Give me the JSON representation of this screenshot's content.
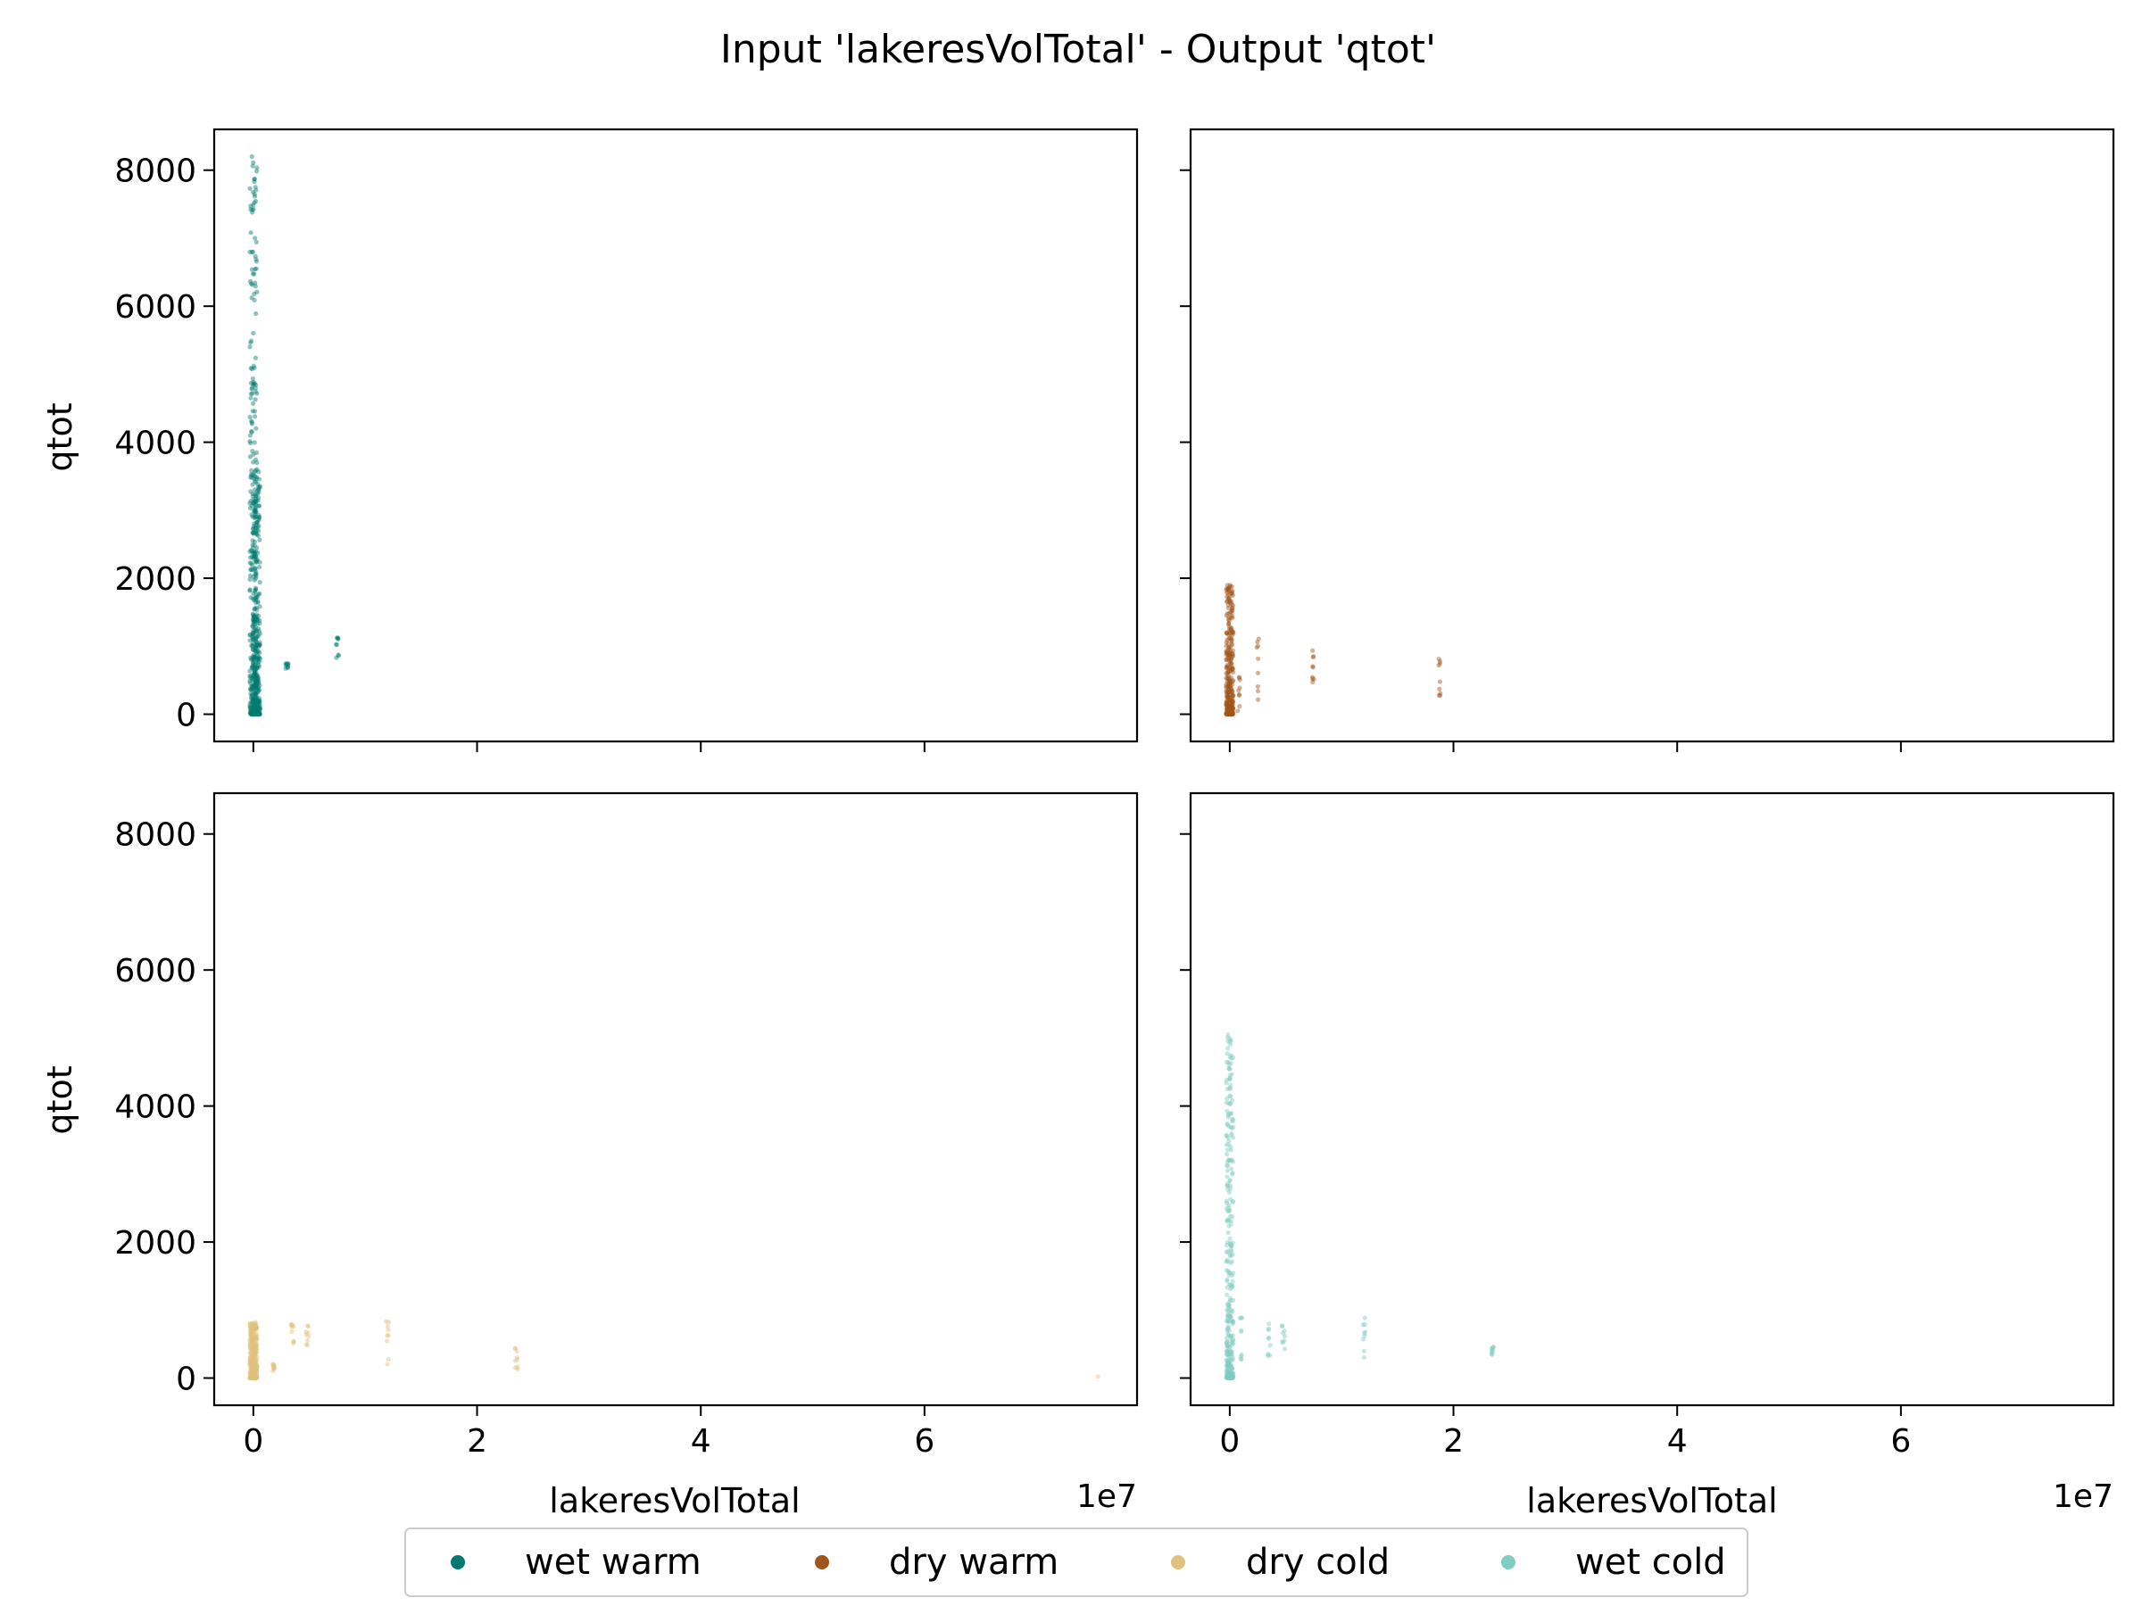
{
  "figure": {
    "title": "Input 'lakeresVolTotal' - Output 'qtot'"
  },
  "axis_text": {
    "xlabel": "lakeresVolTotal",
    "ylabel": "qtot",
    "x_offset_label": "1e7",
    "x_ticks": [
      "0",
      "2",
      "4",
      "6"
    ],
    "y_ticks": [
      "0",
      "2000",
      "4000",
      "6000",
      "8000"
    ]
  },
  "legend": {
    "items": [
      {
        "label": "wet warm",
        "color": "#01796F"
      },
      {
        "label": "dry warm",
        "color": "#A0561A"
      },
      {
        "label": "dry cold",
        "color": "#DFC27D"
      },
      {
        "label": "wet cold",
        "color": "#80CDC1"
      }
    ]
  },
  "chart_data": {
    "type": "scatter",
    "title": "Input 'lakeresVolTotal' - Output 'qtot'",
    "xlabel": "lakeresVolTotal",
    "ylabel": "qtot",
    "x_scale_note": "1e7",
    "xlim": [
      -0.35,
      7.9
    ],
    "ylim": [
      -400,
      8600
    ],
    "x_ticks": [
      0,
      2,
      4,
      6
    ],
    "y_ticks": [
      0,
      2000,
      4000,
      6000,
      8000
    ],
    "layout": "2x2 grid, shared axes",
    "grid": false,
    "legend_position": "bottom-center",
    "panels": [
      {
        "series": "wet warm",
        "color": "#01796F",
        "clusters": [
          {
            "x": 0.0,
            "y_min": 0,
            "y_max": 8200,
            "density": "dense"
          },
          {
            "x": 0.03,
            "y_min": 0,
            "y_max": 3600,
            "density": "dense"
          },
          {
            "x": 0.3,
            "y_min": 660,
            "y_max": 760,
            "density": "sparse"
          },
          {
            "x": 0.75,
            "y_min": 760,
            "y_max": 1130,
            "density": "sparse"
          }
        ]
      },
      {
        "series": "dry warm",
        "color": "#A0561A",
        "clusters": [
          {
            "x": 0.0,
            "y_min": 0,
            "y_max": 1900,
            "density": "dense"
          },
          {
            "x": 0.08,
            "y_min": 50,
            "y_max": 600,
            "density": "sparse"
          },
          {
            "x": 0.25,
            "y_min": 200,
            "y_max": 1300,
            "density": "sparse"
          },
          {
            "x": 0.75,
            "y_min": 350,
            "y_max": 1000,
            "density": "sparse"
          },
          {
            "x": 1.88,
            "y_min": 200,
            "y_max": 900,
            "density": "sparse"
          }
        ]
      },
      {
        "series": "dry cold",
        "color": "#DFC27D",
        "clusters": [
          {
            "x": 0.0,
            "y_min": 0,
            "y_max": 820,
            "density": "dense"
          },
          {
            "x": 0.18,
            "y_min": 100,
            "y_max": 300,
            "density": "sparse"
          },
          {
            "x": 0.35,
            "y_min": 500,
            "y_max": 800,
            "density": "sparse"
          },
          {
            "x": 0.48,
            "y_min": 480,
            "y_max": 780,
            "density": "sparse"
          },
          {
            "x": 1.2,
            "y_min": 200,
            "y_max": 850,
            "density": "sparse"
          },
          {
            "x": 2.35,
            "y_min": 50,
            "y_max": 450,
            "density": "sparse"
          },
          {
            "x": 7.55,
            "y_min": 0,
            "y_max": 50,
            "density": "single"
          }
        ]
      },
      {
        "series": "wet cold",
        "color": "#80CDC1",
        "clusters": [
          {
            "x": 0.0,
            "y_min": 0,
            "y_max": 5050,
            "density": "dense"
          },
          {
            "x": 0.1,
            "y_min": 200,
            "y_max": 900,
            "density": "sparse"
          },
          {
            "x": 0.35,
            "y_min": 300,
            "y_max": 800,
            "density": "sparse"
          },
          {
            "x": 0.48,
            "y_min": 400,
            "y_max": 900,
            "density": "sparse"
          },
          {
            "x": 1.2,
            "y_min": 300,
            "y_max": 900,
            "density": "sparse"
          },
          {
            "x": 2.35,
            "y_min": 320,
            "y_max": 460,
            "density": "sparse"
          }
        ]
      }
    ]
  }
}
